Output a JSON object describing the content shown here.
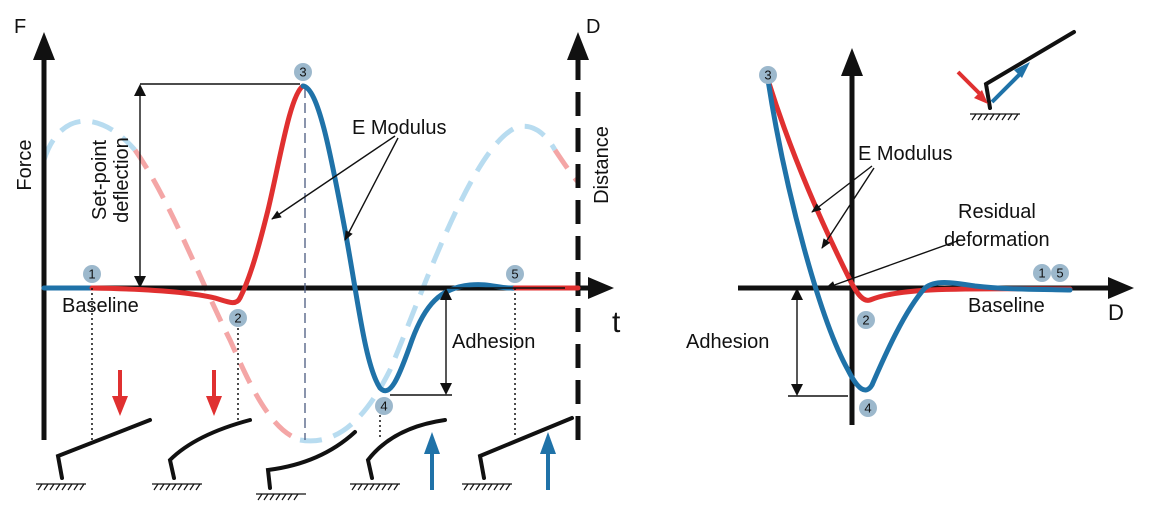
{
  "left_panel": {
    "axis_f": "F",
    "axis_d": "D",
    "axis_t": "t",
    "ylabel_force": "Force",
    "ylabel_distance": "Distance",
    "setpoint_line1": "Set-point",
    "setpoint_line2": "deflection",
    "e_modulus": "E Modulus",
    "baseline": "Baseline",
    "adhesion": "Adhesion",
    "markers": [
      "1",
      "2",
      "3",
      "4",
      "5"
    ]
  },
  "right_panel": {
    "axis_d": "D",
    "e_modulus": "E Modulus",
    "residual_line1": "Residual",
    "residual_line2": "deformation",
    "baseline": "Baseline",
    "adhesion": "Adhesion",
    "markers": [
      "3",
      "2",
      "4",
      "1",
      "5"
    ]
  },
  "colors": {
    "approach": "#e03030",
    "retract": "#1f72a8",
    "approach_light": "#f4a6a6",
    "retract_light": "#b8dcf0",
    "marker": "#9cb8cc"
  }
}
